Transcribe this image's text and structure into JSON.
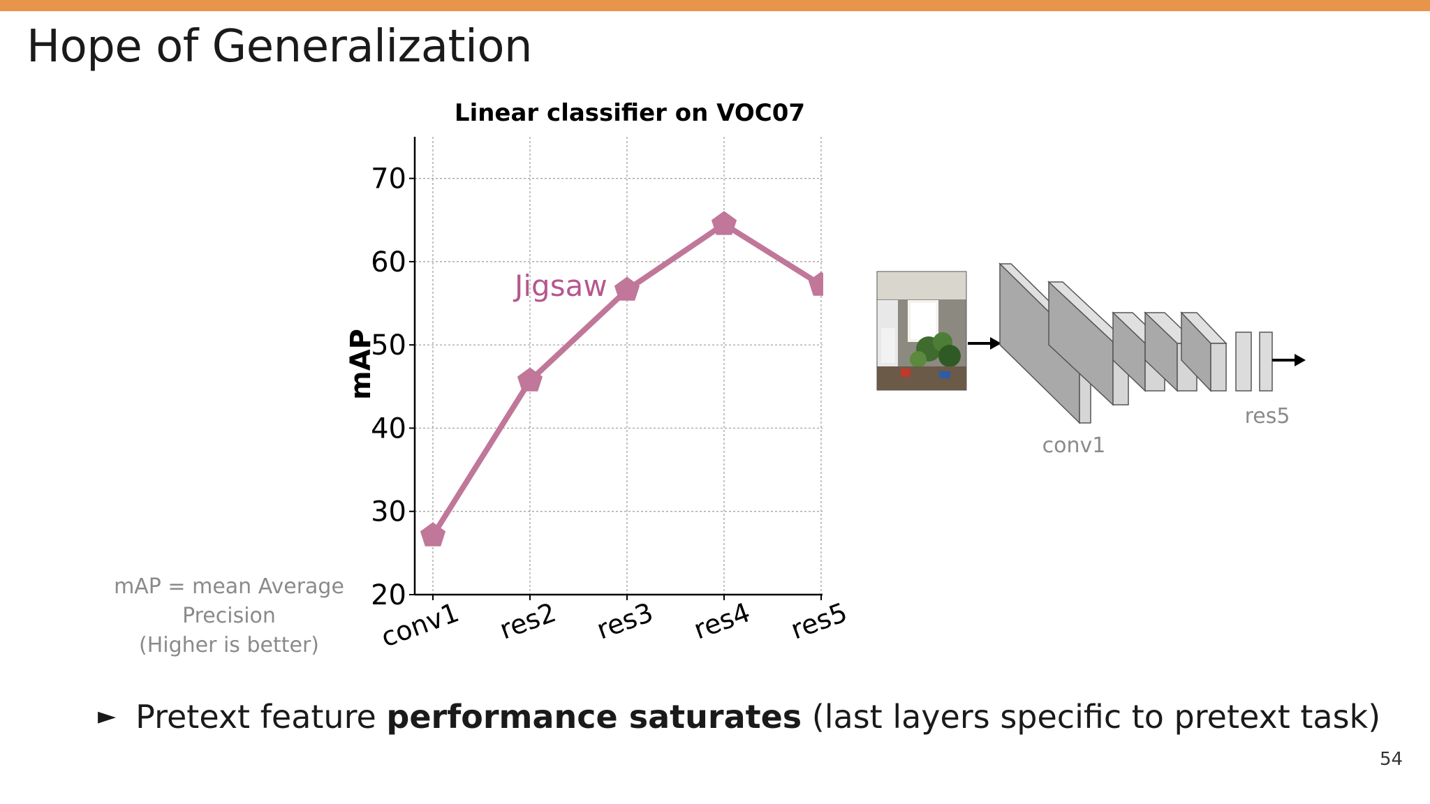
{
  "slide": {
    "title": "Hope of Generalization",
    "page_number": "54",
    "accent_color": "#E8944A"
  },
  "chart_data": {
    "type": "line",
    "title": "Linear classifier on VOC07",
    "xlabel": "",
    "ylabel": "mAP",
    "categories": [
      "conv1",
      "res2",
      "res3",
      "res4",
      "res5"
    ],
    "yticks": [
      "20",
      "30",
      "40",
      "50",
      "60",
      "70"
    ],
    "ylim": [
      20,
      75
    ],
    "grid": true,
    "series": [
      {
        "name": "Jigsaw",
        "values": [
          27.1,
          45.7,
          56.6,
          64.5,
          57.2
        ],
        "color": "#C07799",
        "label_color": "#B5578F",
        "marker": "pentagon"
      }
    ]
  },
  "note": {
    "line1": "mAP = mean Average",
    "line2": "Precision",
    "line3": "(Higher is better)"
  },
  "network": {
    "label_conv1": "conv1",
    "label_res5": "res5",
    "image": "room-photo-thumbnail"
  },
  "bullet": {
    "marker": "►",
    "text_before": "Pretext feature ",
    "text_bold": "performance saturates",
    "text_after": " (last layers specific to pretext task)"
  }
}
